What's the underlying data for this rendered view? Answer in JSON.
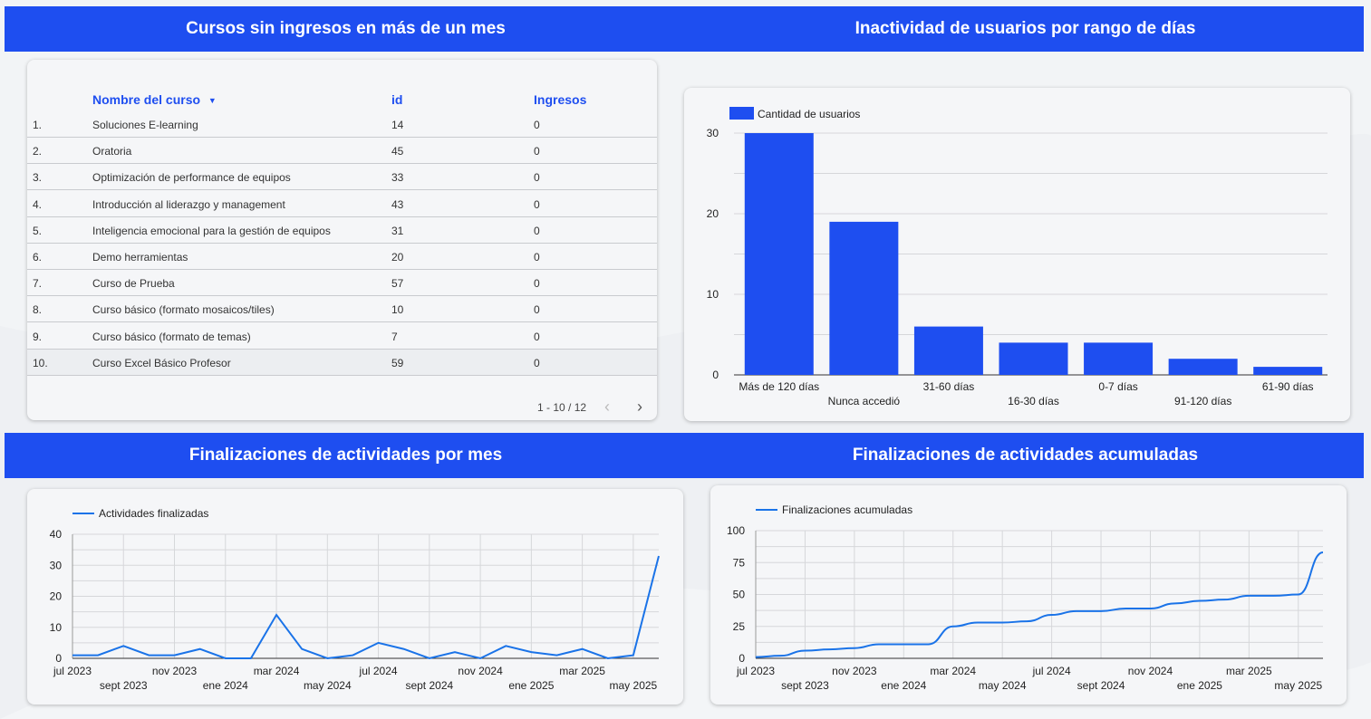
{
  "headers": {
    "top_left": "Cursos sin ingresos en más de un mes",
    "top_right": "Inactividad de usuarios por rango de días",
    "bottom_left": "Finalizaciones de actividades por mes",
    "bottom_right": "Finalizaciones de actividades acumuladas"
  },
  "table": {
    "columns": [
      "Nombre del curso",
      "id",
      "Ingresos"
    ],
    "sort_icon": "sort-desc-icon",
    "rows": [
      {
        "n": "1.",
        "name": "Soluciones E-learning",
        "id": "14",
        "ingresos": "0"
      },
      {
        "n": "2.",
        "name": "Oratoria",
        "id": "45",
        "ingresos": "0"
      },
      {
        "n": "3.",
        "name": "Optimización de performance de equipos",
        "id": "33",
        "ingresos": "0"
      },
      {
        "n": "4.",
        "name": "Introducción al liderazgo y management",
        "id": "43",
        "ingresos": "0"
      },
      {
        "n": "5.",
        "name": "Inteligencia emocional para la gestión de equipos",
        "id": "31",
        "ingresos": "0"
      },
      {
        "n": "6.",
        "name": "Demo herramientas",
        "id": "20",
        "ingresos": "0"
      },
      {
        "n": "7.",
        "name": "Curso de Prueba",
        "id": "57",
        "ingresos": "0"
      },
      {
        "n": "8.",
        "name": "Curso básico (formato mosaicos/tiles)",
        "id": "10",
        "ingresos": "0"
      },
      {
        "n": "9.",
        "name": "Curso básico (formato de temas)",
        "id": "7",
        "ingresos": "0"
      },
      {
        "n": "10.",
        "name": "Curso Excel Básico Profesor",
        "id": "59",
        "ingresos": "0"
      }
    ],
    "pagination": "1 - 10 / 12"
  },
  "colors": {
    "accent": "#1e4ef0",
    "line": "#1a73e8"
  },
  "chart_data": [
    {
      "type": "bar",
      "legend": "Cantidad de usuarios",
      "categories": [
        "Más de 120 días",
        "Nunca accedió",
        "31-60 días",
        "16-30 días",
        "0-7 días",
        "91-120 días",
        "61-90 días"
      ],
      "values": [
        30,
        19,
        6,
        4,
        4,
        2,
        1
      ],
      "ylim": [
        0,
        30
      ],
      "yticks": [
        0,
        10,
        20,
        30
      ],
      "grid": true,
      "legend_position": "top-left"
    },
    {
      "type": "line",
      "legend": "Actividades finalizadas",
      "x": [
        "2023-07",
        "2023-08",
        "2023-09",
        "2023-10",
        "2023-11",
        "2023-12",
        "2024-01",
        "2024-02",
        "2024-03",
        "2024-04",
        "2024-05",
        "2024-06",
        "2024-07",
        "2024-08",
        "2024-09",
        "2024-10",
        "2024-11",
        "2024-12",
        "2025-01",
        "2025-02",
        "2025-03",
        "2025-04",
        "2025-05",
        "2025-06"
      ],
      "values": [
        1,
        1,
        4,
        1,
        1,
        3,
        0,
        0,
        14,
        3,
        0,
        1,
        5,
        3,
        0,
        2,
        0,
        4,
        2,
        1,
        3,
        0,
        1,
        33
      ],
      "ylim": [
        0,
        40
      ],
      "yticks": [
        0,
        10,
        20,
        30,
        40
      ],
      "xtick_labels": [
        "jul 2023",
        "sept 2023",
        "nov 2023",
        "ene 2024",
        "mar 2024",
        "may 2024",
        "jul 2024",
        "sept 2024",
        "nov 2024",
        "ene 2025",
        "mar 2025",
        "may 2025"
      ],
      "grid": true,
      "legend_position": "top-left"
    },
    {
      "type": "line",
      "legend": "Finalizaciones acumuladas",
      "x": [
        "2023-07",
        "2023-08",
        "2023-09",
        "2023-10",
        "2023-11",
        "2023-12",
        "2024-01",
        "2024-02",
        "2024-03",
        "2024-04",
        "2024-05",
        "2024-06",
        "2024-07",
        "2024-08",
        "2024-09",
        "2024-10",
        "2024-11",
        "2024-12",
        "2025-01",
        "2025-02",
        "2025-03",
        "2025-04",
        "2025-05",
        "2025-06"
      ],
      "values": [
        1,
        2,
        6,
        7,
        8,
        11,
        11,
        11,
        25,
        28,
        28,
        29,
        34,
        37,
        37,
        39,
        39,
        43,
        45,
        46,
        49,
        49,
        50,
        83
      ],
      "ylim": [
        0,
        100
      ],
      "yticks": [
        0,
        25,
        50,
        75,
        100
      ],
      "xtick_labels": [
        "jul 2023",
        "sept 2023",
        "nov 2023",
        "ene 2024",
        "mar 2024",
        "may 2024",
        "jul 2024",
        "sept 2024",
        "nov 2024",
        "ene 2025",
        "mar 2025",
        "may 2025"
      ],
      "grid": true,
      "legend_position": "top-left"
    }
  ]
}
